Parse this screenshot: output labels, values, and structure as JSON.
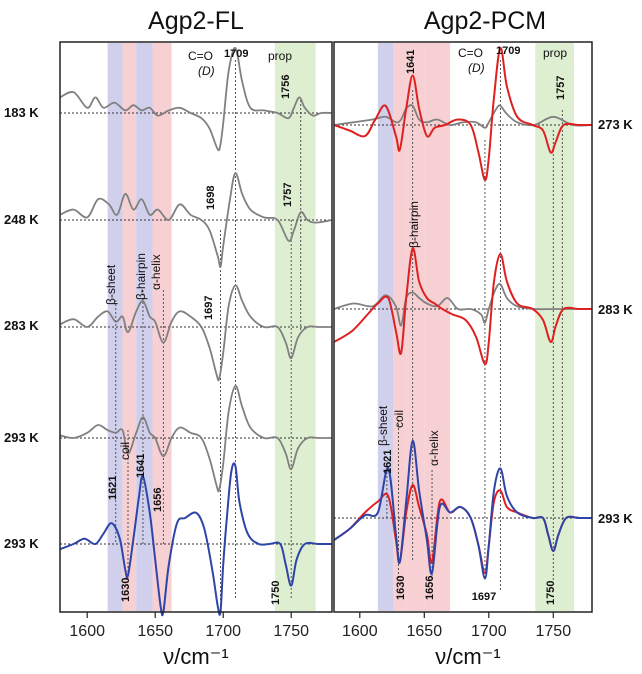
{
  "chart_data": [
    {
      "type": "line",
      "title": "Agp2-FL",
      "xlabel": "ν/cm⁻¹",
      "xlim": [
        1580,
        1780
      ],
      "xticks": [
        1600,
        1650,
        1700,
        1750
      ],
      "xtick_labels": [
        "1600",
        "1650",
        "1700",
        "1750"
      ],
      "bands": [
        {
          "label": "β-sheet",
          "range": [
            1615,
            1626
          ],
          "color": "#c8c8ea"
        },
        {
          "label": "coil",
          "range": [
            1626,
            1636
          ],
          "color": "#f6c8cc"
        },
        {
          "label": "β-hairpin",
          "range": [
            1636,
            1648
          ],
          "color": "#c8c8ea"
        },
        {
          "label": "α-helix",
          "range": [
            1648,
            1662
          ],
          "color": "#f6c8cc"
        },
        {
          "label": "prop",
          "range": [
            1738,
            1768
          ],
          "color": "#d8ebc9"
        }
      ],
      "header_labels": {
        "co": "C=O",
        "co_sub": "(D)",
        "co_peak": "1709",
        "prop": "prop"
      },
      "series": [
        {
          "temperature": "183 K",
          "color": "#808080",
          "baseline": 0,
          "x": [
            1580,
            1590,
            1600,
            1606,
            1612,
            1620,
            1628,
            1634,
            1640,
            1646,
            1652,
            1660,
            1668,
            1676,
            1684,
            1690,
            1696,
            1698,
            1700,
            1704,
            1709,
            1714,
            1720,
            1730,
            1740,
            1748,
            1752,
            1756,
            1760,
            1766,
            1772,
            1780
          ],
          "y": [
            0.3,
            0.4,
            0.1,
            0.3,
            0.1,
            0.2,
            0.05,
            0.15,
            0.05,
            0.1,
            -0.05,
            0.05,
            0.1,
            0.0,
            -0.1,
            -0.3,
            -0.7,
            -0.6,
            -0.2,
            0.8,
            1.25,
            0.6,
            0.1,
            0.05,
            0.0,
            -0.1,
            0.1,
            0.3,
            0.1,
            -0.05,
            0.0,
            0.0
          ]
        },
        {
          "temperature": "248 K",
          "color": "#808080",
          "baseline": 0,
          "x": [
            1580,
            1590,
            1600,
            1608,
            1616,
            1622,
            1628,
            1634,
            1640,
            1646,
            1652,
            1660,
            1668,
            1676,
            1684,
            1690,
            1696,
            1698,
            1700,
            1705,
            1709,
            1714,
            1720,
            1730,
            1740,
            1748,
            1752,
            1757,
            1762,
            1768,
            1780
          ],
          "y": [
            0.1,
            0.2,
            0.05,
            0.4,
            0.3,
            0.1,
            0.5,
            0.2,
            0.4,
            0.1,
            0.2,
            0.0,
            0.3,
            0.1,
            0.0,
            -0.2,
            -0.7,
            -0.9,
            -0.5,
            0.4,
            0.9,
            0.5,
            0.2,
            0.05,
            0.0,
            -0.4,
            -0.2,
            0.15,
            0.0,
            -0.05,
            0.0
          ]
        },
        {
          "temperature": "283 K",
          "color": "#808080",
          "baseline": 0,
          "x": [
            1580,
            1590,
            1600,
            1608,
            1615,
            1621,
            1626,
            1630,
            1636,
            1641,
            1646,
            1650,
            1656,
            1662,
            1668,
            1676,
            1684,
            1690,
            1695,
            1697,
            1700,
            1704,
            1709,
            1714,
            1720,
            1730,
            1740,
            1746,
            1750,
            1755,
            1762,
            1770,
            1780
          ],
          "y": [
            0.05,
            0.15,
            0.0,
            0.2,
            0.3,
            0.1,
            0.2,
            -0.1,
            0.3,
            0.5,
            0.2,
            0.1,
            -0.3,
            0.1,
            0.3,
            0.2,
            0.0,
            -0.4,
            -0.9,
            -1.0,
            -0.5,
            0.4,
            0.8,
            0.5,
            0.2,
            0.0,
            0.0,
            -0.3,
            -0.6,
            -0.2,
            0.0,
            0.0,
            0.0
          ]
        },
        {
          "temperature": "293 K",
          "color": "#808080",
          "baseline": 0,
          "x": [
            1580,
            1590,
            1600,
            1608,
            1615,
            1621,
            1626,
            1630,
            1636,
            1641,
            1646,
            1650,
            1656,
            1662,
            1668,
            1676,
            1684,
            1690,
            1695,
            1697,
            1700,
            1704,
            1709,
            1714,
            1720,
            1730,
            1740,
            1746,
            1750,
            1755,
            1762,
            1770,
            1780
          ],
          "y": [
            0.05,
            0.0,
            0.1,
            0.25,
            0.15,
            0.1,
            0.15,
            -0.3,
            0.1,
            0.4,
            0.1,
            0.0,
            -0.35,
            0.0,
            0.2,
            0.1,
            0.0,
            -0.4,
            -0.9,
            -1.0,
            -0.5,
            0.5,
            1.0,
            0.6,
            0.2,
            0.0,
            0.0,
            -0.3,
            -0.6,
            -0.2,
            0.0,
            0.0,
            0.0
          ]
        },
        {
          "temperature": "293 K",
          "color": "#2e45a8",
          "baseline": 0,
          "x": [
            1580,
            1590,
            1598,
            1606,
            1612,
            1618,
            1624,
            1628,
            1630,
            1634,
            1638,
            1641,
            1646,
            1650,
            1654,
            1656,
            1660,
            1666,
            1672,
            1680,
            1686,
            1692,
            1696,
            1698,
            1700,
            1703,
            1706,
            1709,
            1712,
            1718,
            1726,
            1734,
            1742,
            1746,
            1750,
            1754,
            1760,
            1770,
            1780
          ],
          "y": [
            -0.1,
            0.0,
            0.1,
            0.0,
            0.2,
            0.4,
            0.1,
            -0.5,
            -0.6,
            0.1,
            0.9,
            1.3,
            0.6,
            -0.3,
            -1.2,
            -1.3,
            -0.4,
            0.4,
            0.5,
            0.6,
            0.3,
            -0.5,
            -1.2,
            -1.3,
            -0.4,
            0.6,
            1.4,
            1.5,
            0.8,
            0.2,
            0.0,
            0.0,
            0.0,
            -0.4,
            -0.8,
            -0.3,
            0.0,
            0.0,
            0.0
          ]
        }
      ],
      "peak_labels": [
        "1621",
        "1630",
        "1641",
        "1656",
        "1697",
        "1698",
        "1750",
        "1756",
        "1757"
      ]
    },
    {
      "type": "line",
      "title": "Agp2-PCM",
      "xlabel": "ν/cm⁻¹",
      "xlim": [
        1580,
        1780
      ],
      "xticks": [
        1600,
        1650,
        1700,
        1750
      ],
      "xtick_labels": [
        "1600",
        "1650",
        "1700",
        "1750"
      ],
      "bands": [
        {
          "label": "β-sheet",
          "range": [
            1614,
            1626
          ],
          "color": "#c8c8ea"
        },
        {
          "label": "coil",
          "range": [
            1626,
            1636
          ],
          "color": "#f6c8cc"
        },
        {
          "label": "β-hairpin",
          "range": [
            1636,
            1650
          ],
          "color": "#f6c8cc"
        },
        {
          "label": "α-helix",
          "range": [
            1650,
            1670
          ],
          "color": "#f6c8cc"
        },
        {
          "label": "prop",
          "range": [
            1736,
            1766
          ],
          "color": "#d8ebc9"
        }
      ],
      "header_labels": {
        "co": "C=O",
        "co_sub": "(D)",
        "co_peak": "1709",
        "prop": "prop"
      },
      "series": [
        {
          "temperature": "273 K",
          "color": "#808080",
          "baseline": 0,
          "x": [
            1580,
            1595,
            1610,
            1620,
            1628,
            1632,
            1636,
            1641,
            1646,
            1652,
            1660,
            1670,
            1680,
            1690,
            1697,
            1700,
            1706,
            1709,
            1714,
            1722,
            1735,
            1750,
            1765,
            1780
          ],
          "y": [
            0.0,
            0.05,
            0.1,
            0.15,
            0.05,
            0.1,
            0.3,
            0.35,
            0.1,
            0.05,
            0.1,
            0.0,
            0.05,
            0.05,
            -0.05,
            0.05,
            0.3,
            0.35,
            0.2,
            0.05,
            0.0,
            0.15,
            0.0,
            0.0
          ]
        },
        {
          "temperature": "273 K",
          "color": "#e02020",
          "baseline": 0,
          "x": [
            1580,
            1592,
            1604,
            1612,
            1620,
            1628,
            1631,
            1636,
            1641,
            1646,
            1652,
            1658,
            1666,
            1676,
            1686,
            1692,
            1697,
            1700,
            1704,
            1709,
            1714,
            1722,
            1734,
            1742,
            1748,
            1752,
            1758,
            1770,
            1780
          ],
          "y": [
            0.0,
            -0.1,
            -0.2,
            0.1,
            0.35,
            -0.2,
            -0.45,
            0.3,
            0.9,
            0.3,
            -0.2,
            -0.05,
            0.0,
            0.1,
            0.0,
            -0.5,
            -1.0,
            -0.6,
            0.5,
            1.4,
            0.7,
            0.15,
            0.0,
            -0.1,
            -0.5,
            -0.3,
            0.0,
            0.0,
            0.0
          ]
        },
        {
          "temperature": "283 K",
          "color": "#808080",
          "baseline": 0,
          "x": [
            1580,
            1595,
            1610,
            1620,
            1628,
            1632,
            1636,
            1641,
            1646,
            1652,
            1660,
            1668,
            1676,
            1686,
            1694,
            1697,
            1700,
            1705,
            1709,
            1714,
            1722,
            1735,
            1750,
            1765,
            1780
          ],
          "y": [
            0.0,
            0.1,
            0.05,
            0.25,
            0.05,
            -0.3,
            0.2,
            0.3,
            0.2,
            0.1,
            0.05,
            0.2,
            0.0,
            0.0,
            -0.1,
            -0.25,
            0.0,
            0.35,
            0.45,
            0.2,
            0.05,
            0.0,
            0.0,
            0.0,
            0.0
          ]
        },
        {
          "temperature": "283 K",
          "color": "#e02020",
          "baseline": 0,
          "x": [
            1580,
            1594,
            1606,
            1614,
            1622,
            1628,
            1632,
            1636,
            1641,
            1646,
            1652,
            1658,
            1664,
            1672,
            1682,
            1690,
            1697,
            1700,
            1704,
            1709,
            1714,
            1722,
            1734,
            1742,
            1748,
            1752,
            1758,
            1770,
            1780
          ],
          "y": [
            -0.6,
            -0.4,
            -0.1,
            0.1,
            0.2,
            -0.4,
            -0.8,
            0.2,
            1.1,
            0.5,
            0.2,
            0.1,
            0.0,
            -0.1,
            -0.2,
            -0.5,
            -1.0,
            -0.6,
            0.5,
            1.0,
            0.5,
            0.1,
            0.0,
            -0.2,
            -0.6,
            -0.3,
            0.0,
            0.0,
            0.0
          ]
        },
        {
          "temperature": "293 K",
          "color": "#e02020",
          "baseline": 0,
          "x": [
            1580,
            1592,
            1604,
            1614,
            1622,
            1628,
            1631,
            1636,
            1641,
            1646,
            1652,
            1656,
            1662,
            1670,
            1678,
            1686,
            1692,
            1697,
            1700,
            1704,
            1709,
            1714,
            1722,
            1734,
            1742,
            1746,
            1750,
            1754,
            1760,
            1770,
            1780
          ],
          "y": [
            -0.4,
            -0.2,
            0.1,
            0.3,
            0.4,
            -0.4,
            -0.8,
            0.1,
            0.6,
            0.2,
            -0.3,
            -0.8,
            0.3,
            0.1,
            0.2,
            0.0,
            -0.5,
            -1.0,
            -0.5,
            0.3,
            0.5,
            0.2,
            0.1,
            0.0,
            0.0,
            -0.3,
            -0.6,
            -0.3,
            0.0,
            0.0,
            0.0
          ]
        },
        {
          "temperature": "293 K",
          "color": "#2e45a8",
          "baseline": 0,
          "x": [
            1580,
            1592,
            1604,
            1614,
            1622,
            1628,
            1631,
            1636,
            1641,
            1646,
            1652,
            1656,
            1662,
            1670,
            1678,
            1686,
            1692,
            1697,
            1700,
            1704,
            1709,
            1714,
            1722,
            1734,
            1742,
            1746,
            1750,
            1754,
            1760,
            1770,
            1780
          ],
          "y": [
            -0.4,
            -0.2,
            0.05,
            0.1,
            0.9,
            -0.3,
            -0.8,
            0.3,
            1.4,
            0.5,
            -0.4,
            -1.0,
            0.2,
            0.1,
            0.2,
            0.0,
            -0.5,
            -1.1,
            -0.5,
            0.5,
            0.9,
            0.4,
            0.1,
            0.0,
            0.0,
            -0.3,
            -0.6,
            -0.3,
            0.0,
            0.0,
            0.0
          ]
        }
      ],
      "peak_labels": [
        "1641",
        "1621",
        "1630",
        "1656",
        "1697",
        "1750",
        "1757"
      ]
    }
  ],
  "panel1": {
    "title": "Agp2-FL",
    "temps": [
      "183 K",
      "248 K",
      "283 K",
      "293 K",
      "293 K"
    ],
    "bands": [
      "β-sheet",
      "coil",
      "β-hairpin",
      "α-helix"
    ],
    "peaks": {
      "p1621": "1621",
      "p1630": "1630",
      "p1641": "1641",
      "p1656": "1656",
      "p1697": "1697",
      "p1698": "1698",
      "p1750": "1750",
      "p1756": "1756",
      "p1757": "1757"
    },
    "header": {
      "co": "C=O",
      "co_sub": "(D)",
      "co_peak": "1709",
      "prop": "prop"
    },
    "xlabel": "ν/cm⁻¹",
    "ticks": [
      "1600",
      "1650",
      "1700",
      "1750"
    ]
  },
  "panel2": {
    "title": "Agp2-PCM",
    "temps": [
      "273 K",
      "283 K",
      "293 K"
    ],
    "bands": [
      "β-sheet",
      "coil",
      "β-hairpin",
      "α-helix"
    ],
    "peaks": {
      "p1641": "1641",
      "p1621": "1621",
      "p1630": "1630",
      "p1656": "1656",
      "p1697": "1697",
      "p1750": "1750",
      "p1757": "1757"
    },
    "header": {
      "co": "C=O",
      "co_sub": "(D)",
      "co_peak": "1709",
      "prop": "prop"
    },
    "xlabel": "ν/cm⁻¹",
    "ticks": [
      "1600",
      "1650",
      "1700",
      "1750"
    ]
  }
}
